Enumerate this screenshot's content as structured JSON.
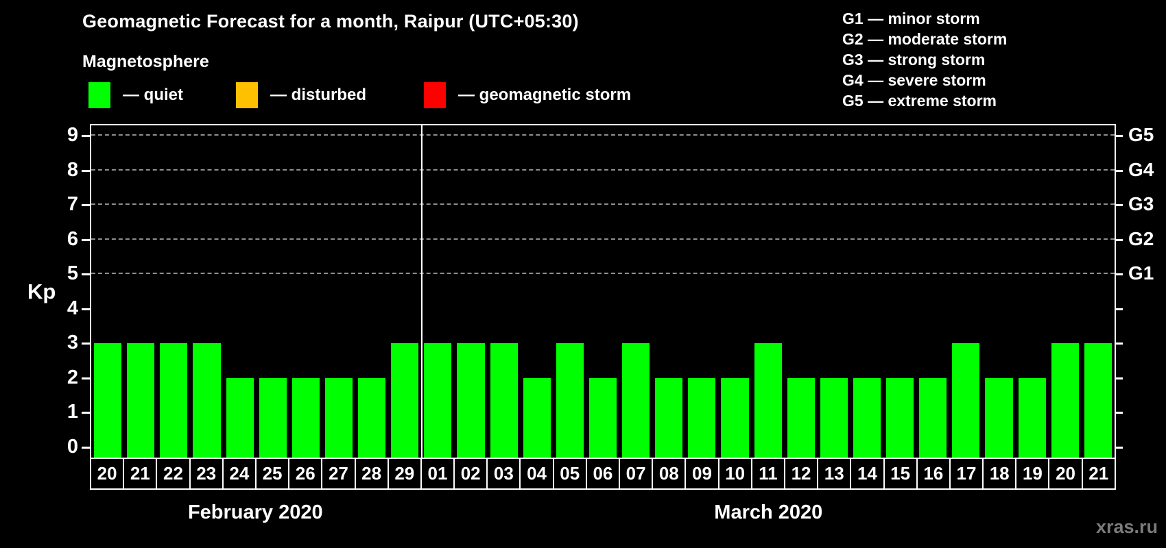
{
  "title": "Geomagnetic Forecast for a month, Raipur (UTC+05:30)",
  "subtitle": "Magnetosphere",
  "legend": [
    {
      "label": "— quiet",
      "color": "#00ff00"
    },
    {
      "label": "— disturbed",
      "color": "#ffc000"
    },
    {
      "label": "— geomagnetic storm",
      "color": "#ff0000"
    }
  ],
  "g_legend": [
    "G1 — minor storm",
    "G2 — moderate storm",
    "G3 — strong storm",
    "G4 — severe storm",
    "G5 — extreme storm"
  ],
  "y_axis": {
    "label": "Kp",
    "ticks": [
      0,
      1,
      2,
      3,
      4,
      5,
      6,
      7,
      8,
      9
    ]
  },
  "right_axis": {
    "tick_values": [
      0,
      1,
      2,
      3,
      4,
      5,
      6,
      7,
      8,
      9
    ],
    "labels": [
      {
        "value": 5,
        "text": "G1"
      },
      {
        "value": 6,
        "text": "G2"
      },
      {
        "value": 7,
        "text": "G3"
      },
      {
        "value": 8,
        "text": "G4"
      },
      {
        "value": 9,
        "text": "G5"
      }
    ]
  },
  "chart_data": {
    "type": "bar",
    "title": "Geomagnetic Forecast for a month, Raipur (UTC+05:30)",
    "xlabel": "",
    "ylabel": "Kp",
    "ylim": [
      0,
      9
    ],
    "grid": "dashed horizontal at Kp 5-9 only",
    "grid_values": [
      5,
      6,
      7,
      8,
      9
    ],
    "categories": [
      "20",
      "21",
      "22",
      "23",
      "24",
      "25",
      "26",
      "27",
      "28",
      "29",
      "01",
      "02",
      "03",
      "04",
      "05",
      "06",
      "07",
      "08",
      "09",
      "10",
      "11",
      "12",
      "13",
      "14",
      "15",
      "16",
      "17",
      "18",
      "19",
      "20",
      "21"
    ],
    "values": [
      3,
      3,
      3,
      3,
      2,
      2,
      2,
      2,
      2,
      3,
      3,
      3,
      3,
      2,
      3,
      2,
      3,
      2,
      2,
      2,
      3,
      2,
      2,
      2,
      2,
      2,
      3,
      2,
      2,
      3,
      3
    ],
    "months": [
      {
        "label": "February 2020",
        "days": 10
      },
      {
        "label": "March 2020",
        "days": 21
      }
    ],
    "series_status": "all bars quiet (green)"
  },
  "watermark": "xras.ru"
}
